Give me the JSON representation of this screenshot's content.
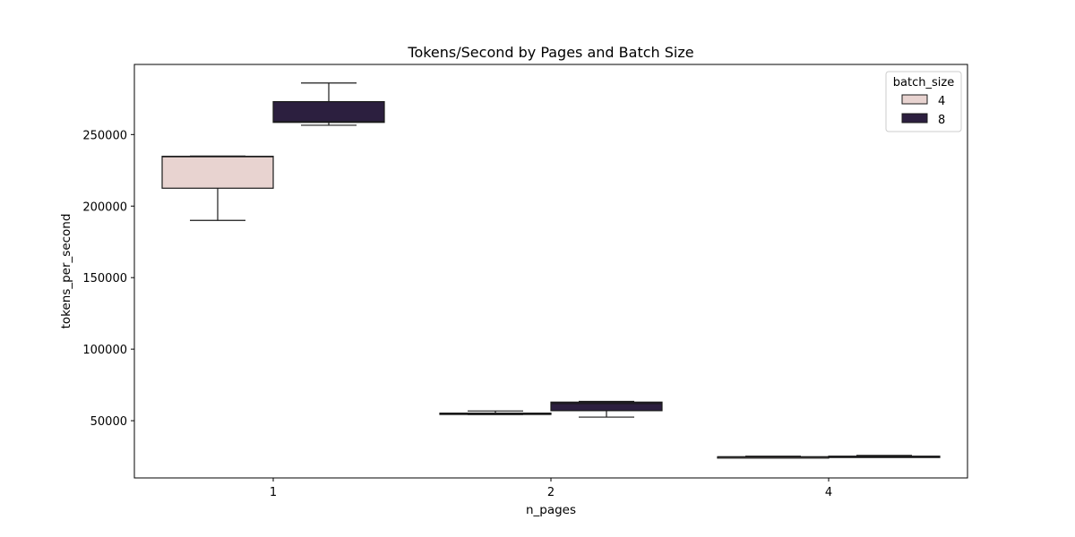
{
  "chart_data": {
    "type": "box",
    "title": "Tokens/Second by Pages and Batch Size",
    "xlabel": "n_pages",
    "ylabel": "tokens_per_second",
    "categories": [
      "1",
      "2",
      "4"
    ],
    "ylim": [
      10000,
      299000
    ],
    "yticks": [
      50000,
      100000,
      150000,
      200000,
      250000
    ],
    "ytick_labels": [
      "50000",
      "100000",
      "150000",
      "200000",
      "250000"
    ],
    "legend": {
      "title": "batch_size",
      "placement": "top-right",
      "entries": [
        "4",
        "8"
      ]
    },
    "series": [
      {
        "name": "4",
        "color": "#e8d3d0",
        "boxes": [
          {
            "category": "1",
            "whislo": 190000,
            "q1": 212500,
            "median": 234500,
            "q3": 234800,
            "whishi": 235000
          },
          {
            "category": "2",
            "whislo": 54300,
            "q1": 54500,
            "median": 55000,
            "q3": 55300,
            "whishi": 56800
          },
          {
            "category": "4",
            "whislo": 24300,
            "q1": 24400,
            "median": 24700,
            "q3": 24800,
            "whishi": 25200
          }
        ]
      },
      {
        "name": "8",
        "color": "#2c1f3f",
        "boxes": [
          {
            "category": "1",
            "whislo": 256500,
            "q1": 258500,
            "median": 259000,
            "q3": 273000,
            "whishi": 286000
          },
          {
            "category": "2",
            "whislo": 52500,
            "q1": 57000,
            "median": 62000,
            "q3": 63000,
            "whishi": 63500
          },
          {
            "category": "4",
            "whislo": 24700,
            "q1": 24900,
            "median": 25000,
            "q3": 25200,
            "whishi": 25700
          }
        ]
      }
    ]
  }
}
